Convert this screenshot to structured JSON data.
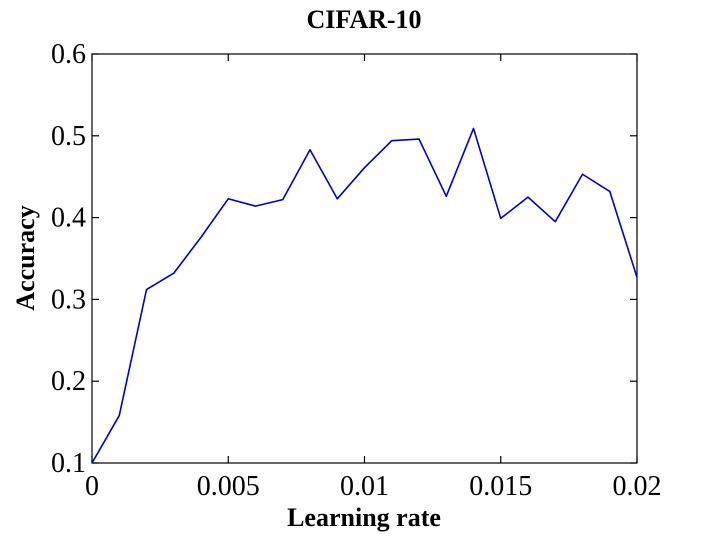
{
  "chart_data": {
    "type": "line",
    "title": "CIFAR-10",
    "xlabel": "Learning rate",
    "ylabel": "Accuracy",
    "xlim": [
      0,
      0.02
    ],
    "ylim": [
      0.1,
      0.6
    ],
    "xticks": [
      0,
      0.005,
      0.01,
      0.015,
      0.02
    ],
    "xtick_labels": [
      "0",
      "0.005",
      "0.01",
      "0.015",
      "0.02"
    ],
    "yticks": [
      0.1,
      0.2,
      0.3,
      0.4,
      0.5,
      0.6
    ],
    "ytick_labels": [
      "0.1",
      "0.2",
      "0.3",
      "0.4",
      "0.5",
      "0.6"
    ],
    "grid": false,
    "colors": {
      "line": "#0000cc",
      "axes": "#000000"
    },
    "x": [
      0,
      0.001,
      0.002,
      0.003,
      0.004,
      0.005,
      0.006,
      0.007,
      0.008,
      0.009,
      0.01,
      0.011,
      0.012,
      0.013,
      0.014,
      0.015,
      0.016,
      0.017,
      0.018,
      0.019,
      0.02
    ],
    "series": [
      {
        "values": [
          0.1,
          0.158,
          0.312,
          0.332,
          0.376,
          0.423,
          0.414,
          0.422,
          0.483,
          0.423,
          0.461,
          0.494,
          0.496,
          0.426,
          0.509,
          0.399,
          0.425,
          0.395,
          0.453,
          0.432,
          0.327
        ]
      }
    ]
  }
}
